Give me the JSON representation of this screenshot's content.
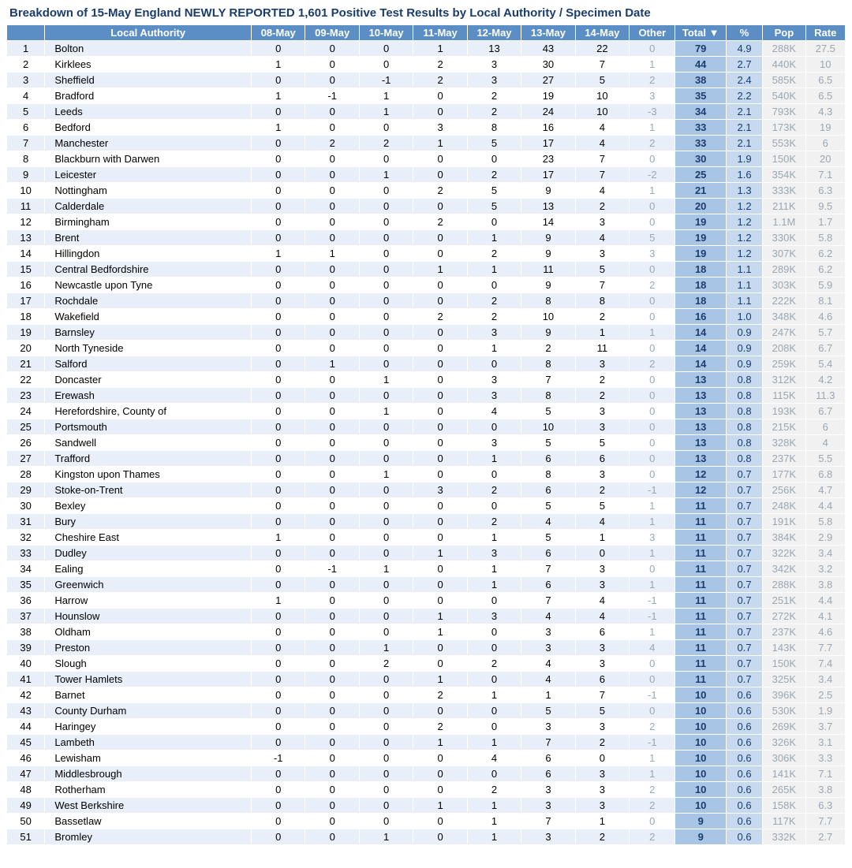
{
  "title": "Breakdown of 15-May England NEWLY REPORTED 1,601 Positive Test Results by Local Authority / Specimen Date",
  "columns": {
    "rank": "",
    "la": "Local Authority",
    "d1": "08-May",
    "d2": "09-May",
    "d3": "10-May",
    "d4": "11-May",
    "d5": "12-May",
    "d6": "13-May",
    "d7": "14-May",
    "other": "Other",
    "total": "Total ▼",
    "pct": "%",
    "pop": "Pop",
    "rate": "Rate"
  },
  "colors": {
    "header_bg": "#5b8ec4",
    "header_fg": "#ffffff",
    "row_even": "#e8eff8",
    "row_odd": "#ffffff",
    "total_bg": "#a9c5e6",
    "pct_bg": "#c6d9ee",
    "muted_fg": "#9aa6b2",
    "title_fg": "#1a3d6d"
  },
  "rows": [
    {
      "rank": 1,
      "la": "Bolton",
      "d": [
        0,
        0,
        0,
        1,
        13,
        43,
        22
      ],
      "other": 0,
      "total": 79,
      "pct": "4.9",
      "pop": "288K",
      "rate": "27.5"
    },
    {
      "rank": 2,
      "la": "Kirklees",
      "d": [
        1,
        0,
        0,
        2,
        3,
        30,
        7
      ],
      "other": 1,
      "total": 44,
      "pct": "2.7",
      "pop": "440K",
      "rate": "10"
    },
    {
      "rank": 3,
      "la": "Sheffield",
      "d": [
        0,
        0,
        -1,
        2,
        3,
        27,
        5
      ],
      "other": 2,
      "total": 38,
      "pct": "2.4",
      "pop": "585K",
      "rate": "6.5"
    },
    {
      "rank": 4,
      "la": "Bradford",
      "d": [
        1,
        -1,
        1,
        0,
        2,
        19,
        10
      ],
      "other": 3,
      "total": 35,
      "pct": "2.2",
      "pop": "540K",
      "rate": "6.5"
    },
    {
      "rank": 5,
      "la": "Leeds",
      "d": [
        0,
        0,
        1,
        0,
        2,
        24,
        10
      ],
      "other": -3,
      "total": 34,
      "pct": "2.1",
      "pop": "793K",
      "rate": "4.3"
    },
    {
      "rank": 6,
      "la": "Bedford",
      "d": [
        1,
        0,
        0,
        3,
        8,
        16,
        4
      ],
      "other": 1,
      "total": 33,
      "pct": "2.1",
      "pop": "173K",
      "rate": "19"
    },
    {
      "rank": 7,
      "la": "Manchester",
      "d": [
        0,
        2,
        2,
        1,
        5,
        17,
        4
      ],
      "other": 2,
      "total": 33,
      "pct": "2.1",
      "pop": "553K",
      "rate": "6"
    },
    {
      "rank": 8,
      "la": "Blackburn with Darwen",
      "d": [
        0,
        0,
        0,
        0,
        0,
        23,
        7
      ],
      "other": 0,
      "total": 30,
      "pct": "1.9",
      "pop": "150K",
      "rate": "20"
    },
    {
      "rank": 9,
      "la": "Leicester",
      "d": [
        0,
        0,
        1,
        0,
        2,
        17,
        7
      ],
      "other": -2,
      "total": 25,
      "pct": "1.6",
      "pop": "354K",
      "rate": "7.1"
    },
    {
      "rank": 10,
      "la": "Nottingham",
      "d": [
        0,
        0,
        0,
        2,
        5,
        9,
        4
      ],
      "other": 1,
      "total": 21,
      "pct": "1.3",
      "pop": "333K",
      "rate": "6.3"
    },
    {
      "rank": 11,
      "la": "Calderdale",
      "d": [
        0,
        0,
        0,
        0,
        5,
        13,
        2
      ],
      "other": 0,
      "total": 20,
      "pct": "1.2",
      "pop": "211K",
      "rate": "9.5"
    },
    {
      "rank": 12,
      "la": "Birmingham",
      "d": [
        0,
        0,
        0,
        2,
        0,
        14,
        3
      ],
      "other": 0,
      "total": 19,
      "pct": "1.2",
      "pop": "1.1M",
      "rate": "1.7"
    },
    {
      "rank": 13,
      "la": "Brent",
      "d": [
        0,
        0,
        0,
        0,
        1,
        9,
        4
      ],
      "other": 5,
      "total": 19,
      "pct": "1.2",
      "pop": "330K",
      "rate": "5.8"
    },
    {
      "rank": 14,
      "la": "Hillingdon",
      "d": [
        1,
        1,
        0,
        0,
        2,
        9,
        3
      ],
      "other": 3,
      "total": 19,
      "pct": "1.2",
      "pop": "307K",
      "rate": "6.2"
    },
    {
      "rank": 15,
      "la": "Central Bedfordshire",
      "d": [
        0,
        0,
        0,
        1,
        1,
        11,
        5
      ],
      "other": 0,
      "total": 18,
      "pct": "1.1",
      "pop": "289K",
      "rate": "6.2"
    },
    {
      "rank": 16,
      "la": "Newcastle upon Tyne",
      "d": [
        0,
        0,
        0,
        0,
        0,
        9,
        7
      ],
      "other": 2,
      "total": 18,
      "pct": "1.1",
      "pop": "303K",
      "rate": "5.9"
    },
    {
      "rank": 17,
      "la": "Rochdale",
      "d": [
        0,
        0,
        0,
        0,
        2,
        8,
        8
      ],
      "other": 0,
      "total": 18,
      "pct": "1.1",
      "pop": "222K",
      "rate": "8.1"
    },
    {
      "rank": 18,
      "la": "Wakefield",
      "d": [
        0,
        0,
        0,
        2,
        2,
        10,
        2
      ],
      "other": 0,
      "total": 16,
      "pct": "1.0",
      "pop": "348K",
      "rate": "4.6"
    },
    {
      "rank": 19,
      "la": "Barnsley",
      "d": [
        0,
        0,
        0,
        0,
        3,
        9,
        1
      ],
      "other": 1,
      "total": 14,
      "pct": "0.9",
      "pop": "247K",
      "rate": "5.7"
    },
    {
      "rank": 20,
      "la": "North Tyneside",
      "d": [
        0,
        0,
        0,
        0,
        1,
        2,
        11
      ],
      "other": 0,
      "total": 14,
      "pct": "0.9",
      "pop": "208K",
      "rate": "6.7"
    },
    {
      "rank": 21,
      "la": "Salford",
      "d": [
        0,
        1,
        0,
        0,
        0,
        8,
        3
      ],
      "other": 2,
      "total": 14,
      "pct": "0.9",
      "pop": "259K",
      "rate": "5.4"
    },
    {
      "rank": 22,
      "la": "Doncaster",
      "d": [
        0,
        0,
        1,
        0,
        3,
        7,
        2
      ],
      "other": 0,
      "total": 13,
      "pct": "0.8",
      "pop": "312K",
      "rate": "4.2"
    },
    {
      "rank": 23,
      "la": "Erewash",
      "d": [
        0,
        0,
        0,
        0,
        3,
        8,
        2
      ],
      "other": 0,
      "total": 13,
      "pct": "0.8",
      "pop": "115K",
      "rate": "11.3"
    },
    {
      "rank": 24,
      "la": "Herefordshire, County of",
      "d": [
        0,
        0,
        1,
        0,
        4,
        5,
        3
      ],
      "other": 0,
      "total": 13,
      "pct": "0.8",
      "pop": "193K",
      "rate": "6.7"
    },
    {
      "rank": 25,
      "la": "Portsmouth",
      "d": [
        0,
        0,
        0,
        0,
        0,
        10,
        3
      ],
      "other": 0,
      "total": 13,
      "pct": "0.8",
      "pop": "215K",
      "rate": "6"
    },
    {
      "rank": 26,
      "la": "Sandwell",
      "d": [
        0,
        0,
        0,
        0,
        3,
        5,
        5
      ],
      "other": 0,
      "total": 13,
      "pct": "0.8",
      "pop": "328K",
      "rate": "4"
    },
    {
      "rank": 27,
      "la": "Trafford",
      "d": [
        0,
        0,
        0,
        0,
        1,
        6,
        6
      ],
      "other": 0,
      "total": 13,
      "pct": "0.8",
      "pop": "237K",
      "rate": "5.5"
    },
    {
      "rank": 28,
      "la": "Kingston upon Thames",
      "d": [
        0,
        0,
        1,
        0,
        0,
        8,
        3
      ],
      "other": 0,
      "total": 12,
      "pct": "0.7",
      "pop": "177K",
      "rate": "6.8"
    },
    {
      "rank": 29,
      "la": "Stoke-on-Trent",
      "d": [
        0,
        0,
        0,
        3,
        2,
        6,
        2
      ],
      "other": -1,
      "total": 12,
      "pct": "0.7",
      "pop": "256K",
      "rate": "4.7"
    },
    {
      "rank": 30,
      "la": "Bexley",
      "d": [
        0,
        0,
        0,
        0,
        0,
        5,
        5
      ],
      "other": 1,
      "total": 11,
      "pct": "0.7",
      "pop": "248K",
      "rate": "4.4"
    },
    {
      "rank": 31,
      "la": "Bury",
      "d": [
        0,
        0,
        0,
        0,
        2,
        4,
        4
      ],
      "other": 1,
      "total": 11,
      "pct": "0.7",
      "pop": "191K",
      "rate": "5.8"
    },
    {
      "rank": 32,
      "la": "Cheshire East",
      "d": [
        1,
        0,
        0,
        0,
        1,
        5,
        1
      ],
      "other": 3,
      "total": 11,
      "pct": "0.7",
      "pop": "384K",
      "rate": "2.9"
    },
    {
      "rank": 33,
      "la": "Dudley",
      "d": [
        0,
        0,
        0,
        1,
        3,
        6,
        0
      ],
      "other": 1,
      "total": 11,
      "pct": "0.7",
      "pop": "322K",
      "rate": "3.4"
    },
    {
      "rank": 34,
      "la": "Ealing",
      "d": [
        0,
        -1,
        1,
        0,
        1,
        7,
        3
      ],
      "other": 0,
      "total": 11,
      "pct": "0.7",
      "pop": "342K",
      "rate": "3.2"
    },
    {
      "rank": 35,
      "la": "Greenwich",
      "d": [
        0,
        0,
        0,
        0,
        1,
        6,
        3
      ],
      "other": 1,
      "total": 11,
      "pct": "0.7",
      "pop": "288K",
      "rate": "3.8"
    },
    {
      "rank": 36,
      "la": "Harrow",
      "d": [
        1,
        0,
        0,
        0,
        0,
        7,
        4
      ],
      "other": -1,
      "total": 11,
      "pct": "0.7",
      "pop": "251K",
      "rate": "4.4"
    },
    {
      "rank": 37,
      "la": "Hounslow",
      "d": [
        0,
        0,
        0,
        1,
        3,
        4,
        4
      ],
      "other": -1,
      "total": 11,
      "pct": "0.7",
      "pop": "272K",
      "rate": "4.1"
    },
    {
      "rank": 38,
      "la": "Oldham",
      "d": [
        0,
        0,
        0,
        1,
        0,
        3,
        6
      ],
      "other": 1,
      "total": 11,
      "pct": "0.7",
      "pop": "237K",
      "rate": "4.6"
    },
    {
      "rank": 39,
      "la": "Preston",
      "d": [
        0,
        0,
        1,
        0,
        0,
        3,
        3
      ],
      "other": 4,
      "total": 11,
      "pct": "0.7",
      "pop": "143K",
      "rate": "7.7"
    },
    {
      "rank": 40,
      "la": "Slough",
      "d": [
        0,
        0,
        2,
        0,
        2,
        4,
        3
      ],
      "other": 0,
      "total": 11,
      "pct": "0.7",
      "pop": "150K",
      "rate": "7.4"
    },
    {
      "rank": 41,
      "la": "Tower Hamlets",
      "d": [
        0,
        0,
        0,
        1,
        0,
        4,
        6
      ],
      "other": 0,
      "total": 11,
      "pct": "0.7",
      "pop": "325K",
      "rate": "3.4"
    },
    {
      "rank": 42,
      "la": "Barnet",
      "d": [
        0,
        0,
        0,
        2,
        1,
        1,
        7
      ],
      "other": -1,
      "total": 10,
      "pct": "0.6",
      "pop": "396K",
      "rate": "2.5"
    },
    {
      "rank": 43,
      "la": "County Durham",
      "d": [
        0,
        0,
        0,
        0,
        0,
        5,
        5
      ],
      "other": 0,
      "total": 10,
      "pct": "0.6",
      "pop": "530K",
      "rate": "1.9"
    },
    {
      "rank": 44,
      "la": "Haringey",
      "d": [
        0,
        0,
        0,
        2,
        0,
        3,
        3
      ],
      "other": 2,
      "total": 10,
      "pct": "0.6",
      "pop": "269K",
      "rate": "3.7"
    },
    {
      "rank": 45,
      "la": "Lambeth",
      "d": [
        0,
        0,
        0,
        1,
        1,
        7,
        2
      ],
      "other": -1,
      "total": 10,
      "pct": "0.6",
      "pop": "326K",
      "rate": "3.1"
    },
    {
      "rank": 46,
      "la": "Lewisham",
      "d": [
        -1,
        0,
        0,
        0,
        4,
        6,
        0
      ],
      "other": 1,
      "total": 10,
      "pct": "0.6",
      "pop": "306K",
      "rate": "3.3"
    },
    {
      "rank": 47,
      "la": "Middlesbrough",
      "d": [
        0,
        0,
        0,
        0,
        0,
        6,
        3
      ],
      "other": 1,
      "total": 10,
      "pct": "0.6",
      "pop": "141K",
      "rate": "7.1"
    },
    {
      "rank": 48,
      "la": "Rotherham",
      "d": [
        0,
        0,
        0,
        0,
        2,
        3,
        3
      ],
      "other": 2,
      "total": 10,
      "pct": "0.6",
      "pop": "265K",
      "rate": "3.8"
    },
    {
      "rank": 49,
      "la": "West Berkshire",
      "d": [
        0,
        0,
        0,
        1,
        1,
        3,
        3
      ],
      "other": 2,
      "total": 10,
      "pct": "0.6",
      "pop": "158K",
      "rate": "6.3"
    },
    {
      "rank": 50,
      "la": "Bassetlaw",
      "d": [
        0,
        0,
        0,
        0,
        1,
        7,
        1
      ],
      "other": 0,
      "total": 9,
      "pct": "0.6",
      "pop": "117K",
      "rate": "7.7"
    },
    {
      "rank": 51,
      "la": "Bromley",
      "d": [
        0,
        0,
        1,
        0,
        1,
        3,
        2
      ],
      "other": 2,
      "total": 9,
      "pct": "0.6",
      "pop": "332K",
      "rate": "2.7"
    }
  ]
}
